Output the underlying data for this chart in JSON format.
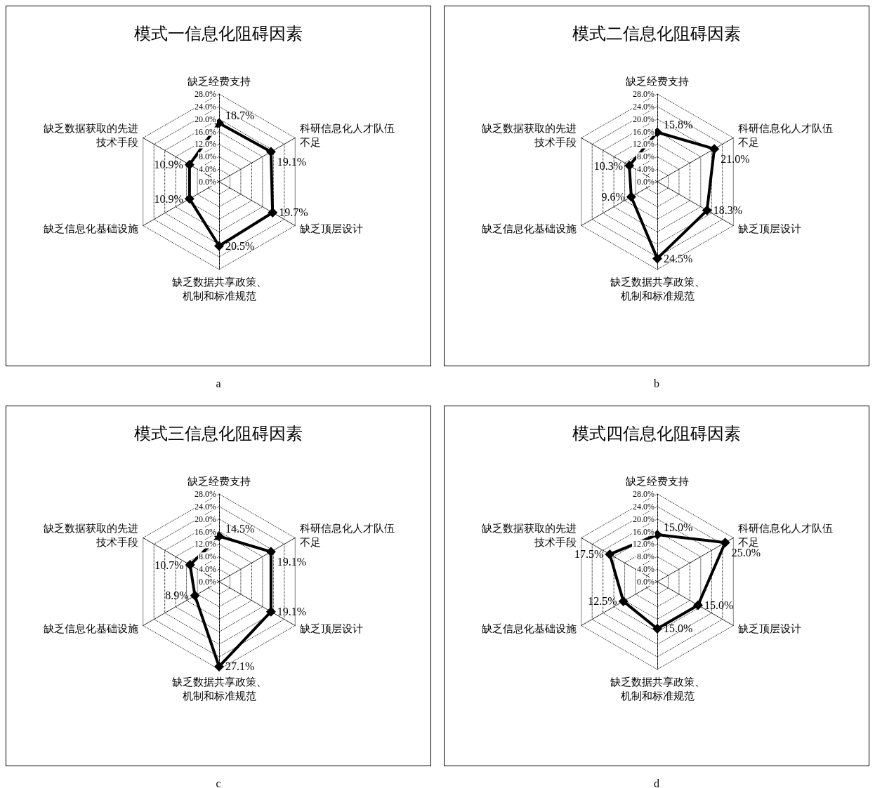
{
  "chart_data": [
    {
      "type": "radar",
      "title": "模式一信息化阻碍因素",
      "categories": [
        "缺乏经费支持",
        "科研信息化人才队伍不足",
        "缺乏顶层设计",
        "缺乏数据共享政策、机制和标准规范",
        "缺乏信息化基础设施",
        "缺乏数据获取的先进技术手段"
      ],
      "ylim": [
        0,
        28
      ],
      "yticks": [
        {
          "value": 0,
          "label": "0.0%"
        },
        {
          "value": 4,
          "label": "4.0%"
        },
        {
          "value": 8,
          "label": "8.0%"
        },
        {
          "value": 12,
          "label": "12.0%"
        },
        {
          "value": 16,
          "label": "16.0%"
        },
        {
          "value": 20,
          "label": "20.0%"
        },
        {
          "value": 24,
          "label": "24.0%"
        },
        {
          "value": 28,
          "label": "28.0%"
        }
      ],
      "marker": "diamond",
      "grid": true,
      "series": [
        {
          "color": "#000000",
          "values": [
            18.7,
            19.1,
            19.7,
            20.5,
            10.9,
            10.9
          ],
          "value_labels": [
            "18.7%",
            "19.1%",
            "19.7%",
            "20.5%",
            "10.9%",
            "10.9%"
          ]
        }
      ],
      "annotations": [
        "a"
      ]
    },
    {
      "type": "radar",
      "title": "模式二信息化阻碍因素",
      "categories": [
        "缺乏经费支持",
        "科研信息化人才队伍不足",
        "缺乏顶层设计",
        "缺乏数据共享政策、机制和标准规范",
        "缺乏信息化基础设施",
        "缺乏数据获取的先进技术手段"
      ],
      "ylim": [
        0,
        28
      ],
      "yticks": [
        {
          "value": 0,
          "label": "0.0%"
        },
        {
          "value": 4,
          "label": "4.0%"
        },
        {
          "value": 8,
          "label": "8.0%"
        },
        {
          "value": 12,
          "label": "12.0%"
        },
        {
          "value": 16,
          "label": "16.0%"
        },
        {
          "value": 20,
          "label": "20.0%"
        },
        {
          "value": 24,
          "label": "24.0%"
        },
        {
          "value": 28,
          "label": "28.0%"
        }
      ],
      "marker": "diamond",
      "grid": true,
      "series": [
        {
          "color": "#000000",
          "values": [
            15.8,
            21.0,
            18.3,
            24.5,
            9.6,
            10.3
          ],
          "value_labels": [
            "15.8%",
            "21.0%",
            "18.3%",
            "24.5%",
            "9.6%",
            "10.3%"
          ]
        }
      ],
      "annotations": [
        "b"
      ]
    },
    {
      "type": "radar",
      "title": "模式三信息化阻碍因素",
      "categories": [
        "缺乏经费支持",
        "科研信息化人才队伍不足",
        "缺乏顶层设计",
        "缺乏数据共享政策、机制和标准规范",
        "缺乏信息化基础设施",
        "缺乏数据获取的先进技术手段"
      ],
      "ylim": [
        0,
        28
      ],
      "yticks": [
        {
          "value": 0,
          "label": "0.0%"
        },
        {
          "value": 4,
          "label": "4.0%"
        },
        {
          "value": 8,
          "label": "8.0%"
        },
        {
          "value": 12,
          "label": "12.0%"
        },
        {
          "value": 16,
          "label": "16.0%"
        },
        {
          "value": 20,
          "label": "20.0%"
        },
        {
          "value": 24,
          "label": "24.0%"
        },
        {
          "value": 28,
          "label": "28.0%"
        }
      ],
      "marker": "diamond",
      "grid": true,
      "series": [
        {
          "color": "#000000",
          "values": [
            14.5,
            19.1,
            19.1,
            27.1,
            8.9,
            10.7
          ],
          "value_labels": [
            "14.5%",
            "19.1%",
            "19.1%",
            "27.1%",
            "8.9%",
            "10.7%"
          ]
        }
      ],
      "annotations": [
        "c"
      ]
    },
    {
      "type": "radar",
      "title": "模式四信息化阻碍因素",
      "categories": [
        "缺乏经费支持",
        "科研信息化人才队伍不足",
        "缺乏顶层设计",
        "缺乏数据共享政策、机制和标准规范",
        "缺乏信息化基础设施",
        "缺乏数据获取的先进技术手段"
      ],
      "ylim": [
        0,
        28
      ],
      "yticks": [
        {
          "value": 0,
          "label": "0.0%"
        },
        {
          "value": 4,
          "label": "4.0%"
        },
        {
          "value": 8,
          "label": "8.0%"
        },
        {
          "value": 12,
          "label": "12.0%"
        },
        {
          "value": 16,
          "label": "16.0%"
        },
        {
          "value": 20,
          "label": "20.0%"
        },
        {
          "value": 24,
          "label": "24.0%"
        },
        {
          "value": 28,
          "label": "28.0%"
        }
      ],
      "marker": "diamond",
      "grid": true,
      "series": [
        {
          "color": "#000000",
          "values": [
            15.0,
            25.0,
            15.0,
            15.0,
            12.5,
            17.5
          ],
          "value_labels": [
            "15.0%",
            "25.0%",
            "15.0%",
            "15.0%",
            "12.5%",
            "17.5%"
          ]
        }
      ],
      "annotations": [
        "d"
      ]
    }
  ]
}
